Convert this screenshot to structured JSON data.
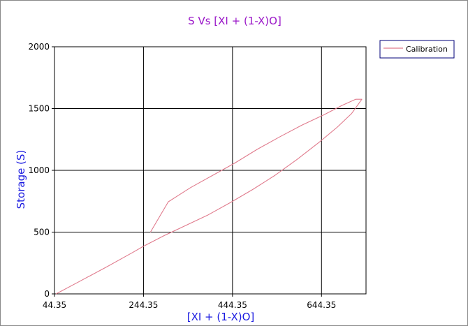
{
  "colors": {
    "title": "#9a16c8",
    "axis_title": "#1a1ae0",
    "series": "#e07a8c",
    "grid": "#000000",
    "legend_border": "#00007a"
  },
  "chart_data": {
    "type": "line",
    "title": "S Vs [XI + (1-X)O]",
    "xlabel": "[XI + (1-X)O]",
    "ylabel": "Storage (S)",
    "xlim": [
      44.35,
      744.35
    ],
    "ylim": [
      0,
      2000
    ],
    "x_ticks": [
      "44.35",
      "244.35",
      "444.35",
      "644.35"
    ],
    "y_ticks": [
      "0",
      "500",
      "1000",
      "1500",
      "2000"
    ],
    "grid": true,
    "legend_position": "top-right",
    "series": [
      {
        "name": "Calibration",
        "x": [
          48,
          100,
          160,
          220,
          244,
          290,
          340,
          390,
          440,
          490,
          540,
          590,
          640,
          680,
          712,
          735,
          721,
          690,
          650,
          600,
          550,
          500,
          450,
          400,
          350,
          300,
          260
        ],
        "y": [
          0,
          100,
          215,
          335,
          385,
          470,
          555,
          640,
          740,
          845,
          960,
          1090,
          1230,
          1350,
          1460,
          1575,
          1575,
          1525,
          1450,
          1365,
          1270,
          1170,
          1060,
          960,
          860,
          745,
          500
        ]
      }
    ]
  }
}
